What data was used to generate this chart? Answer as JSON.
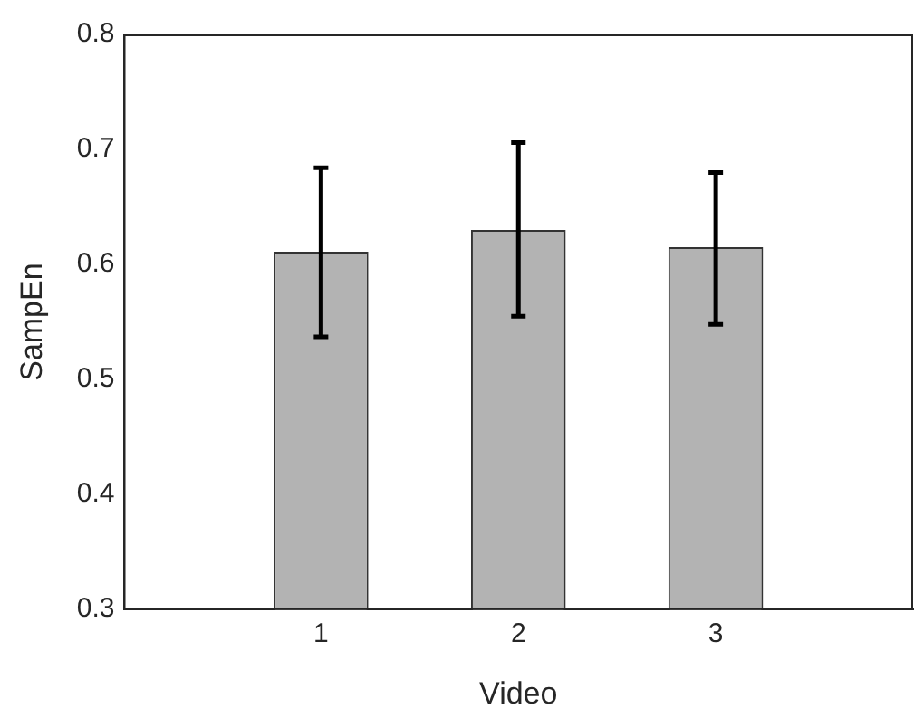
{
  "chart_data": {
    "type": "bar",
    "xlabel": "Video",
    "ylabel": "SampEn",
    "x": [
      1,
      2,
      3
    ],
    "xlim": [
      0,
      4
    ],
    "xticks": [
      1,
      2,
      3
    ],
    "values": [
      0.611,
      0.63,
      0.615
    ],
    "color": "#b3b3b3",
    "errors": [
      [
        0.537,
        0.684
      ],
      [
        0.555,
        0.706
      ],
      [
        0.548,
        0.68
      ]
    ],
    "ylim": [
      0.3,
      0.8
    ],
    "yticks": [
      0.3,
      0.4,
      0.5,
      0.6,
      0.7,
      0.8
    ],
    "grid": false,
    "legend": false
  }
}
